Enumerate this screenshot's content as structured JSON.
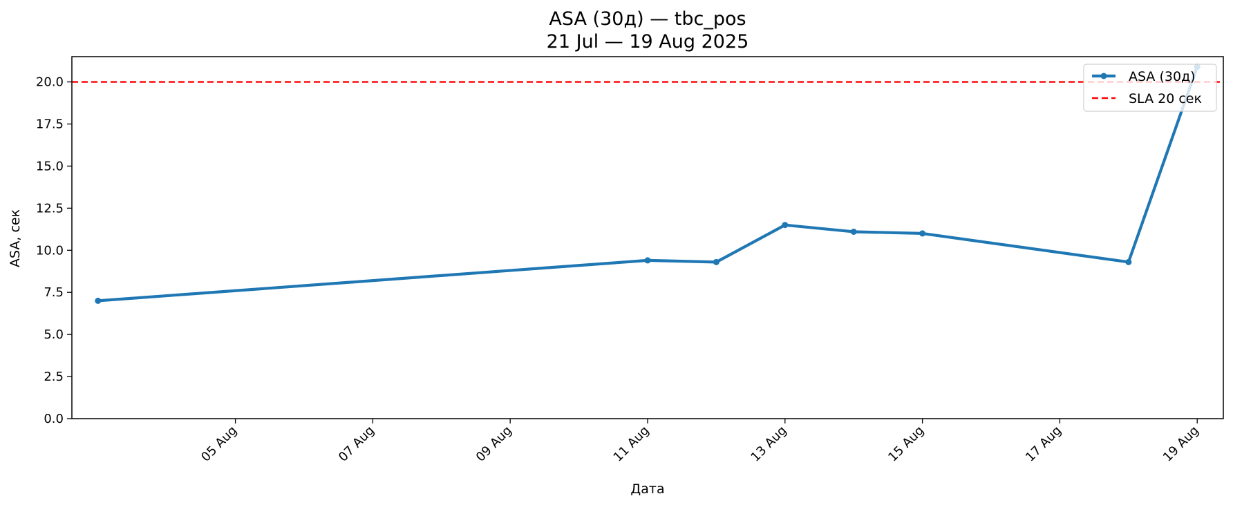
{
  "chart_data": {
    "type": "line",
    "title": "ASA (30д) — tbc_pos",
    "subtitle": "21 Jul — 19 Aug 2025",
    "xlabel": "Дата",
    "ylabel": "ASA, сек",
    "x_tick_labels": [
      "05 Aug",
      "07 Aug",
      "09 Aug",
      "11 Aug",
      "13 Aug",
      "15 Aug",
      "17 Aug",
      "19 Aug"
    ],
    "x_tick_dates": [
      "2025-08-05",
      "2025-08-07",
      "2025-08-09",
      "2025-08-11",
      "2025-08-13",
      "2025-08-15",
      "2025-08-17",
      "2025-08-19"
    ],
    "y_ticks": [
      "0.0",
      "2.5",
      "5.0",
      "7.5",
      "10.0",
      "12.5",
      "15.0",
      "17.5",
      "20.0"
    ],
    "xlim": [
      "2025-08-03",
      "2025-08-19"
    ],
    "ylim": [
      0,
      21.5
    ],
    "grid": false,
    "legend_position": "top-right",
    "series": [
      {
        "name": "ASA (30д)",
        "color": "#1f77b4",
        "x": [
          "2025-08-03",
          "2025-08-11",
          "2025-08-12",
          "2025-08-13",
          "2025-08-14",
          "2025-08-15",
          "2025-08-18",
          "2025-08-19"
        ],
        "values": [
          7.0,
          9.4,
          9.3,
          11.5,
          11.1,
          11.0,
          9.3,
          20.9
        ]
      }
    ],
    "reference_lines": [
      {
        "name": "SLA 20 сек",
        "y": 20,
        "color": "#ff0000",
        "style": "dashed"
      }
    ]
  }
}
